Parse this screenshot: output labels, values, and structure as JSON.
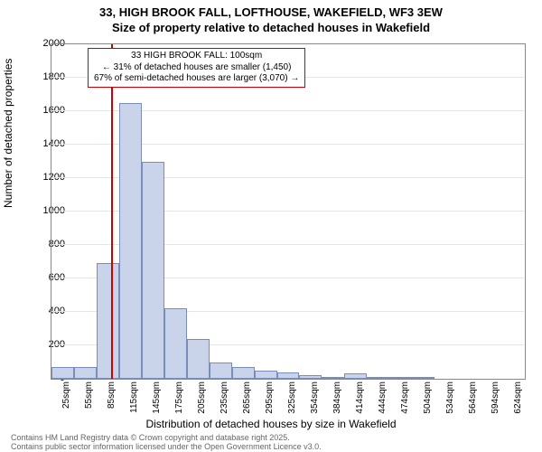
{
  "title_line1": "33, HIGH BROOK FALL, LOFTHOUSE, WAKEFIELD, WF3 3EW",
  "title_line2": "Size of property relative to detached houses in Wakefield",
  "ylabel": "Number of detached properties",
  "xlabel": "Distribution of detached houses by size in Wakefield",
  "footer_line1": "Contains HM Land Registry data © Crown copyright and database right 2025.",
  "footer_line2": "Contains public sector information licensed under the Open Government Licence v3.0.",
  "annotation": {
    "line1": "33 HIGH BROOK FALL: 100sqm",
    "line2": "← 31% of detached houses are smaller (1,450)",
    "line3": "67% of semi-detached houses are larger (3,070) →"
  },
  "chart": {
    "type": "histogram",
    "ylim": [
      0,
      2000
    ],
    "ytick_step": 200,
    "bar_fill": "#c9d4eb",
    "bar_stroke": "#7a8db8",
    "grid_color": "#e5e5e5",
    "border_color": "#888888",
    "background_color": "#ffffff",
    "marker_color": "#cc0000",
    "marker_x_value": 100,
    "title_fontsize": 13,
    "label_fontsize": 12,
    "tick_fontsize": 11,
    "x_categories": [
      "25sqm",
      "55sqm",
      "85sqm",
      "115sqm",
      "145sqm",
      "175sqm",
      "205sqm",
      "235sqm",
      "265sqm",
      "295sqm",
      "325sqm",
      "354sqm",
      "384sqm",
      "414sqm",
      "444sqm",
      "474sqm",
      "504sqm",
      "534sqm",
      "564sqm",
      "594sqm",
      "624sqm"
    ],
    "values": [
      70,
      70,
      690,
      1650,
      1300,
      420,
      240,
      100,
      70,
      50,
      40,
      20,
      10,
      30,
      5,
      5,
      5,
      0,
      0,
      0,
      0
    ]
  }
}
